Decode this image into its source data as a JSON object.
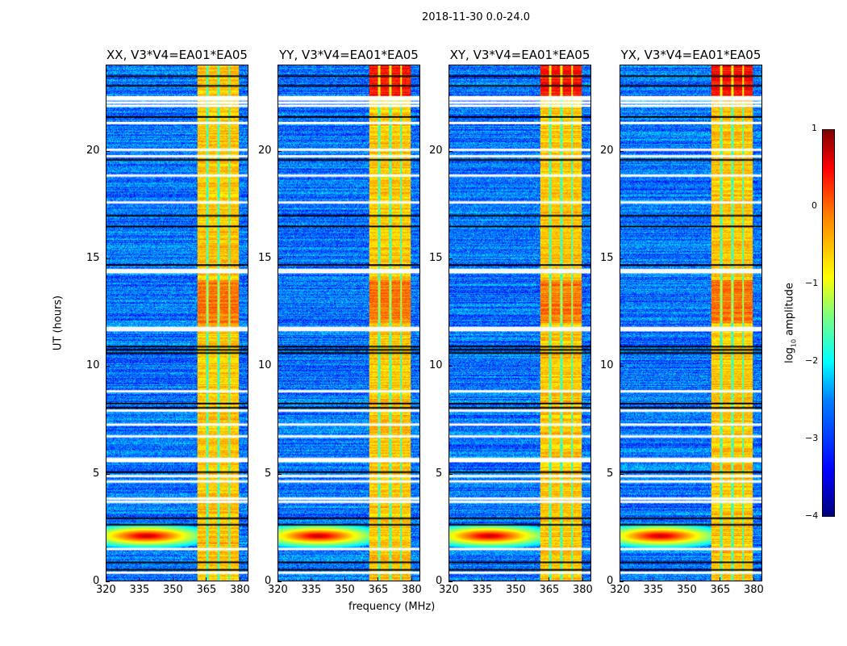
{
  "chart_data": {
    "type": "heatmap",
    "title": "2018-11-30 0.0-24.0",
    "xlabel": "frequency (MHz)",
    "ylabel": "UT (hours)",
    "xlim": [
      320,
      384
    ],
    "ylim": [
      0,
      24
    ],
    "xticks": [
      320,
      335,
      350,
      365,
      380
    ],
    "yticks": [
      0,
      5,
      10,
      15,
      20
    ],
    "panels": [
      {
        "title": "XX, V3*V4=EA01*EA05",
        "strong_band_top": false
      },
      {
        "title": "YY, V3*V4=EA01*EA05",
        "strong_band_top": true
      },
      {
        "title": "XY, V3*V4=EA01*EA05",
        "strong_band_top": true
      },
      {
        "title": "YX, V3*V4=EA01*EA05",
        "strong_band_top": true
      }
    ],
    "colorbar": {
      "label_prefix": "log",
      "label_sub": "10",
      "label_suffix": " amplitude",
      "range": [
        -4,
        1
      ],
      "ticks": [
        "1",
        "0",
        "−1",
        "−2",
        "−3",
        "−4"
      ],
      "colormap": "jet"
    },
    "signal_band_mhz": [
      361,
      380
    ],
    "background_log_amplitude": -2.8,
    "band_log_amplitude": -0.6,
    "rfi_spot": {
      "freq_mhz": 338,
      "ut_hours": 2.1,
      "log_amplitude": 0.8
    },
    "flagged_hours_white": [
      0.35,
      1.45,
      3.65,
      3.8,
      4.6,
      4.85,
      5.55,
      5.65,
      6.7,
      7.25,
      7.9,
      8.8,
      11.65,
      11.75,
      14.35,
      14.45,
      17.6,
      18.85,
      19.75,
      20.05,
      21.3,
      22.1,
      22.25,
      22.4,
      22.5
    ],
    "flagged_hours_black": [
      0.5,
      0.85,
      2.6,
      2.9,
      5.05,
      8.05,
      8.25,
      10.6,
      10.75,
      10.9,
      14.7,
      16.5,
      17.0,
      19.6,
      21.6,
      23.05,
      23.5
    ]
  }
}
